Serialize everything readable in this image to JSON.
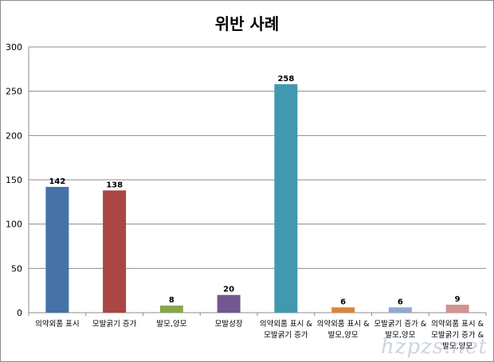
{
  "chart_data": {
    "type": "bar",
    "title": "위반 사례",
    "categories": [
      [
        "의약외품 표시"
      ],
      [
        "모발굵기 증가"
      ],
      [
        "발모,양모"
      ],
      [
        "모발성장"
      ],
      [
        "의약외품 표시 &",
        "모발굵기 증가"
      ],
      [
        "의약외품 표시 &",
        "발모,양모"
      ],
      [
        "모발굵기 증가 &",
        "발모,양모"
      ],
      [
        "의약외품 표시 &",
        "모발굵기 증가 &",
        "발모,양모"
      ]
    ],
    "values": [
      142,
      138,
      8,
      20,
      258,
      6,
      6,
      9
    ],
    "colors": [
      "#4572a7",
      "#aa4643",
      "#89a54e",
      "#71588f",
      "#4198af",
      "#db843d",
      "#93a9cf",
      "#d19392"
    ],
    "ylim": [
      0,
      300
    ],
    "yticks": [
      0,
      50,
      100,
      150,
      200,
      250,
      300
    ],
    "xlabel": "",
    "ylabel": "",
    "grid": true,
    "data_labels": true
  },
  "watermark": "hzpzs.net"
}
